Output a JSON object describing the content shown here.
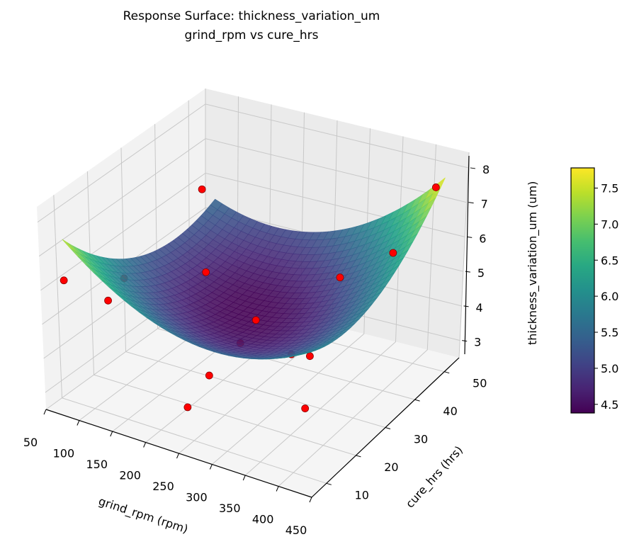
{
  "chart_data": {
    "type": "surface3d",
    "title": "Response Surface: thickness_variation_um",
    "subtitle": "grind_rpm vs cure_hrs",
    "xlabel": "grind_rpm (rpm)",
    "ylabel": "cure_hrs (hrs)",
    "zlabel": "thickness_variation_um (um)",
    "xlim": [
      50,
      450
    ],
    "ylim": [
      5,
      55
    ],
    "zlim": [
      2.5,
      8.45
    ],
    "xticks": [
      50,
      100,
      150,
      200,
      250,
      300,
      350,
      400,
      450
    ],
    "yticks": [
      10,
      20,
      30,
      40,
      50
    ],
    "zticks": [
      3,
      4,
      5,
      6,
      7,
      8
    ],
    "colormap": "viridis",
    "surface": {
      "x_range": [
        75,
        425
      ],
      "y_range": [
        7,
        53
      ],
      "model": "quadratic",
      "corner_values": {
        "low_x_low_y": 7.5,
        "high_x_high_y": 7.75,
        "high_x_low_y": 6.2,
        "low_x_high_y": 5.5
      },
      "minimum": 4.4
    },
    "points": [
      {
        "x": 75,
        "y": 7,
        "z": 6.3
      },
      {
        "x": 120,
        "y": 40,
        "z": 6.9
      },
      {
        "x": 250,
        "y": 8,
        "z": 3.6
      },
      {
        "x": 400,
        "y": 15,
        "z": 5.4
      },
      {
        "x": 425,
        "y": 8,
        "z": 4.6
      },
      {
        "x": 425,
        "y": 50,
        "z": 7.7
      },
      {
        "x": 100,
        "y": 20,
        "z": 5.6
      },
      {
        "x": 100,
        "y": 15,
        "z": 5.3
      },
      {
        "x": 150,
        "y": 35,
        "z": 5.0
      },
      {
        "x": 250,
        "y": 30,
        "z": 4.5
      },
      {
        "x": 250,
        "y": 25,
        "z": 4.2
      },
      {
        "x": 250,
        "y": 15,
        "z": 4.0
      },
      {
        "x": 330,
        "y": 40,
        "z": 5.4
      },
      {
        "x": 350,
        "y": 20,
        "z": 4.8
      },
      {
        "x": 400,
        "y": 42,
        "z": 6.3
      }
    ],
    "point_color": "#ff0000",
    "colorbar": {
      "range": [
        4.38,
        7.78
      ],
      "ticks": [
        "4.5",
        "5.0",
        "5.5",
        "6.0",
        "6.5",
        "7.0",
        "7.5"
      ]
    }
  }
}
